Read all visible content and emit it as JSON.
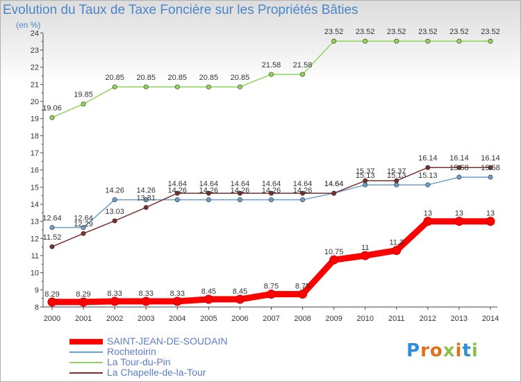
{
  "title": "Evolution du Taux de Taxe Foncière sur les Propriétés Bâties",
  "subtitle": "(en %)",
  "logo": "Proxiti",
  "chart_data": {
    "type": "line",
    "x": [
      "2000",
      "2001",
      "2002",
      "2003",
      "2004",
      "2005",
      "2006",
      "2007",
      "2008",
      "2009",
      "2010",
      "2011",
      "2012",
      "2013",
      "2014"
    ],
    "yticks": [
      8,
      9,
      10,
      11,
      12,
      13,
      14,
      15,
      16,
      17,
      18,
      19,
      20,
      21,
      22,
      23,
      24
    ],
    "ylim": [
      8,
      24.3
    ],
    "grid": false,
    "legend_position": "bottom-left",
    "series": [
      {
        "name": "SAINT-JEAN-DE-SOUDAIN",
        "color": "#ff0000",
        "values": [
          8.29,
          8.29,
          8.33,
          8.33,
          8.33,
          8.45,
          8.45,
          8.75,
          8.75,
          10.75,
          11,
          11.3,
          13,
          13,
          13
        ],
        "labels": [
          "8.29",
          "8.29",
          "8.33",
          "8.33",
          "8.33",
          "8.45",
          "8.45",
          "8.75",
          "8.75",
          "10.75",
          "11",
          "11.3",
          "13",
          "13",
          "13"
        ]
      },
      {
        "name": "Rochetoirin",
        "color": "#6a9fcc",
        "values": [
          12.64,
          12.64,
          14.26,
          14.26,
          14.26,
          14.26,
          14.26,
          14.26,
          14.26,
          14.64,
          15.13,
          15.13,
          15.13,
          15.58,
          15.58
        ],
        "labels": [
          "12.64",
          "12.64",
          "14.26",
          "14.26",
          "14.26",
          "14.26",
          "14.26",
          "14.26",
          "14.26",
          "14.64",
          "15.13",
          "15.13",
          "15.13",
          "15.58",
          "15.58"
        ]
      },
      {
        "name": "La Tour-du-Pin",
        "color": "#8fd35a",
        "values": [
          19.06,
          19.85,
          20.85,
          20.85,
          20.85,
          20.85,
          20.85,
          21.58,
          21.58,
          23.52,
          23.52,
          23.52,
          23.52,
          23.52,
          23.52
        ],
        "labels": [
          "19.06",
          "19.85",
          "20.85",
          "20.85",
          "20.85",
          "20.85",
          "20.85",
          "21.58",
          "21.58",
          "23.52",
          "23.52",
          "23.52",
          "23.52",
          "23.52",
          "23.52"
        ]
      },
      {
        "name": "La Chapelle-de-la-Tour",
        "color": "#7a2e2e",
        "values": [
          11.52,
          12.29,
          13.03,
          13.81,
          14.64,
          14.64,
          14.64,
          14.64,
          14.64,
          14.64,
          15.37,
          15.37,
          16.14,
          16.14,
          16.14
        ],
        "labels": [
          "11.52",
          "12.29",
          "13.03",
          "13.81",
          "14.64",
          "14.64",
          "14.64",
          "14.64",
          "14.64",
          "14.64",
          "15.37",
          "15.37",
          "16.14",
          "16.14",
          "16.14"
        ]
      }
    ]
  }
}
